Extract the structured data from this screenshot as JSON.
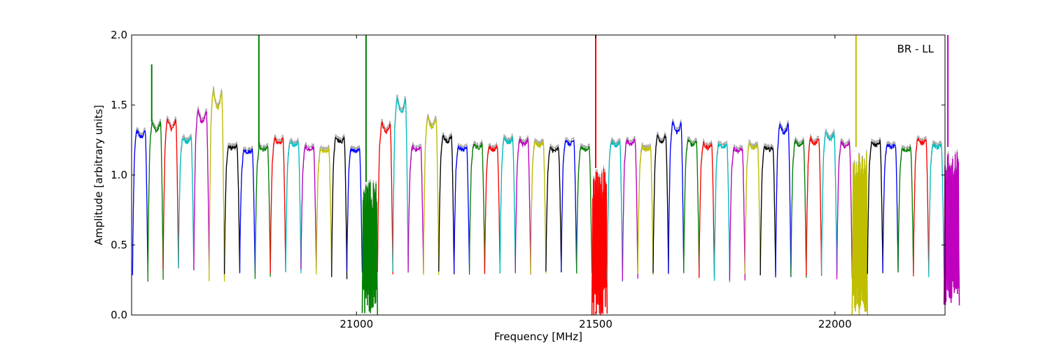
{
  "chart_data": {
    "type": "line",
    "title": "",
    "xlabel": "Frequency [MHz]",
    "ylabel": "Amplitude [arbitrary units]",
    "annotation": "BR - LL",
    "xlim": [
      20530,
      22230
    ],
    "ylim": [
      0.0,
      2.0
    ],
    "x_ticks": [
      21000,
      21500,
      22000
    ],
    "x_tick_labels": [
      "21000",
      "21500",
      "22000"
    ],
    "y_ticks": [
      0.0,
      0.5,
      1.0,
      1.5,
      2.0
    ],
    "y_tick_labels": [
      "0.0",
      "0.5",
      "1.0",
      "1.5",
      "2.0"
    ],
    "grid": false,
    "legend": "none",
    "color_cycle": [
      "#0000ff",
      "#008000",
      "#ff0000",
      "#00bfbf",
      "#bf00bf",
      "#bfbf00",
      "#000000"
    ],
    "background_trace_color": "#aaaaaa",
    "channel_width_mhz": 32,
    "channel_start_mhz": 20532,
    "channels": [
      {
        "peak": 1.32,
        "trough": 0.28,
        "start_level": 0.28
      },
      {
        "peak": 1.38,
        "trough": 0.25,
        "spike": 1.79
      },
      {
        "peak": 1.4,
        "trough": 0.32
      },
      {
        "peak": 1.27,
        "trough": 0.33
      },
      {
        "peak": 1.46,
        "trough": 0.32
      },
      {
        "peak": 1.6,
        "trough": 0.23
      },
      {
        "peak": 1.21,
        "trough": 0.3
      },
      {
        "peak": 1.18,
        "trough": 0.3
      },
      {
        "peak": 1.2,
        "trough": 0.26,
        "spike": 2.0
      },
      {
        "peak": 1.26,
        "trough": 0.31
      },
      {
        "peak": 1.24,
        "trough": 0.31
      },
      {
        "peak": 1.2,
        "trough": 0.32
      },
      {
        "peak": 1.18,
        "trough": 0.3
      },
      {
        "peak": 1.27,
        "trough": 0.27
      },
      {
        "peak": 1.19,
        "trough": 0.3
      },
      {
        "peak": 0.95,
        "trough": 0.0,
        "noisy": true,
        "spike": 2.0
      },
      {
        "peak": 1.37,
        "trough": 0.3
      },
      {
        "peak": 1.55,
        "trough": 0.32
      },
      {
        "peak": 1.2,
        "trough": 0.3
      },
      {
        "peak": 1.41,
        "trough": 0.3
      },
      {
        "peak": 1.28,
        "trough": 0.3
      },
      {
        "peak": 1.2,
        "trough": 0.3
      },
      {
        "peak": 1.22,
        "trough": 0.3
      },
      {
        "peak": 1.2,
        "trough": 0.3
      },
      {
        "peak": 1.27,
        "trough": 0.31
      },
      {
        "peak": 1.25,
        "trough": 0.3
      },
      {
        "peak": 1.24,
        "trough": 0.29
      },
      {
        "peak": 1.19,
        "trough": 0.3
      },
      {
        "peak": 1.25,
        "trough": 0.3
      },
      {
        "peak": 1.2,
        "trough": 0.3
      },
      {
        "peak": 1.05,
        "trough": 0.0,
        "noisy": true,
        "spike": 2.0
      },
      {
        "peak": 1.24,
        "trough": 0.25
      },
      {
        "peak": 1.25,
        "trough": 0.25
      },
      {
        "peak": 1.2,
        "trough": 0.3
      },
      {
        "peak": 1.28,
        "trough": 0.3
      },
      {
        "peak": 1.37,
        "trough": 0.3
      },
      {
        "peak": 1.25,
        "trough": 0.3
      },
      {
        "peak": 1.22,
        "trough": 0.26
      },
      {
        "peak": 1.22,
        "trough": 0.24
      },
      {
        "peak": 1.19,
        "trough": 0.26
      },
      {
        "peak": 1.22,
        "trough": 0.28
      },
      {
        "peak": 1.2,
        "trough": 0.27
      },
      {
        "peak": 1.36,
        "trough": 0.27
      },
      {
        "peak": 1.24,
        "trough": 0.28
      },
      {
        "peak": 1.26,
        "trough": 0.27
      },
      {
        "peak": 1.3,
        "trough": 0.28
      },
      {
        "peak": 1.23,
        "trough": 0.27
      },
      {
        "peak": 1.2,
        "trough": 0.0,
        "noisy": true,
        "spike": 2.0
      },
      {
        "peak": 1.24,
        "trough": 0.3
      },
      {
        "peak": 1.22,
        "trough": 0.3
      },
      {
        "peak": 1.19,
        "trough": 0.29
      },
      {
        "peak": 1.26,
        "trough": 0.29
      },
      {
        "peak": 1.22,
        "trough": 0.27
      },
      {
        "peak": 1.2,
        "trough": 0.07,
        "noisy": true,
        "spike": 2.0
      }
    ]
  }
}
